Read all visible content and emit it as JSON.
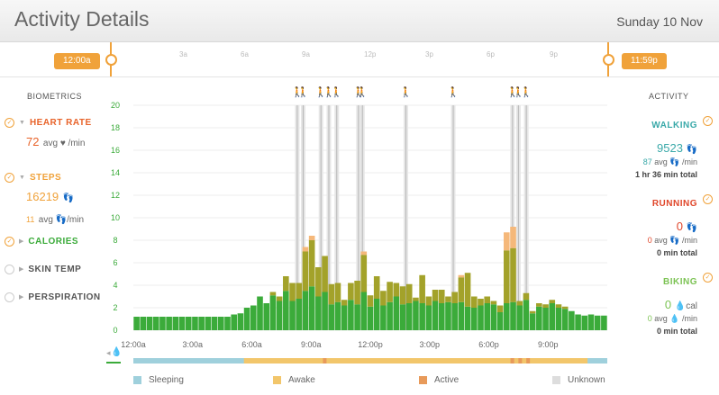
{
  "header": {
    "title": "Activity Details",
    "date": "Sunday 10 Nov"
  },
  "timeline": {
    "start_label": "12:00a",
    "end_label": "11:59p",
    "ticks": [
      "3a",
      "6a",
      "9a",
      "12p",
      "3p",
      "6p",
      "9p"
    ]
  },
  "biometrics": {
    "heading": "BIOMETRICS",
    "heart_rate": {
      "label": "HEART RATE",
      "value": "72",
      "unit": "avg ♥ /min"
    },
    "steps": {
      "label": "STEPS",
      "value": "16219",
      "icon": "footsteps-icon",
      "avg": "11",
      "avg_unit": "avg 👣/min"
    },
    "calories": {
      "label": "CALORIES"
    },
    "skin_temp": {
      "label": "SKIN TEMP"
    },
    "perspiration": {
      "label": "PERSPIRATION"
    }
  },
  "activity": {
    "heading": "ACTIVITY",
    "walking": {
      "label": "WALKING",
      "value": "9523",
      "avg": "87",
      "avg_unit": "avg 👣 /min",
      "total": "1 hr 36 min total"
    },
    "running": {
      "label": "RUNNING",
      "value": "0",
      "avg": "0",
      "avg_unit": "avg 👣 /min",
      "total": "0 min total"
    },
    "biking": {
      "label": "BIKING",
      "value": "0",
      "unit": "cal",
      "avg": "0",
      "avg_unit": "avg 💧 /min",
      "total": "0 min total"
    }
  },
  "legend": [
    "Sleeping",
    "Awake",
    "Active",
    "Unknown"
  ],
  "colors": {
    "accent": "#f0a23a",
    "green": "#3bab3a",
    "olive": "#a3a22a",
    "peach": "#f5b87a",
    "sleeping": "#9fd0dc",
    "awake": "#f2c66b",
    "active": "#e89a5a",
    "unknown": "#dddddd",
    "heart": "#e8632a",
    "steps": "#f0a23a",
    "calories": "#3bab3a",
    "walking": "#3aa9a9",
    "running": "#e0462a",
    "biking": "#7cc354"
  },
  "chart_data": {
    "type": "bar",
    "ylim": [
      0,
      20
    ],
    "yticks": [
      0,
      2,
      4,
      6,
      8,
      10,
      12,
      14,
      16,
      18,
      20
    ],
    "xticks": [
      "12:00a",
      "3:00a",
      "6:00a",
      "9:00a",
      "12:00p",
      "3:00p",
      "6:00p",
      "9:00p"
    ],
    "series": [
      {
        "values": [
          1.2,
          1.2,
          1.2,
          1.2,
          1.2,
          1.2,
          1.2,
          1.2,
          1.2,
          1.2,
          1.2,
          1.2,
          1.2,
          1.2,
          1.2,
          1.4,
          1.5,
          2.0,
          2.2,
          3.0,
          2.4,
          3.1,
          2.6,
          3.5,
          2.6,
          2.8,
          3.5,
          3.9,
          3.0,
          3.4,
          2.3,
          2.5,
          2.2,
          2.7,
          2.3,
          3.4,
          2.1,
          2.8,
          2.2,
          2.5,
          3.0,
          2.3,
          2.4,
          2.6,
          2.4,
          2.2,
          2.6,
          2.4,
          2.5,
          2.4,
          2.5,
          2.1,
          2.0,
          2.2,
          2.4,
          2.3,
          1.6,
          2.4,
          2.5,
          2.2,
          2.7,
          1.5,
          2.1,
          2.0,
          2.4,
          2.0,
          1.9,
          1.7,
          1.4,
          1.3,
          1.4,
          1.3,
          1.3
        ]
      },
      {
        "values": [
          0,
          0,
          0,
          0,
          0,
          0,
          0,
          0,
          0,
          0,
          0,
          0,
          0,
          0,
          0,
          0,
          0,
          0,
          0,
          0,
          0,
          0.3,
          0.4,
          1.3,
          1.6,
          1.4,
          3.5,
          4.1,
          2.6,
          3.2,
          1.8,
          1.7,
          0.5,
          1.5,
          2.1,
          3.3,
          1.0,
          2.0,
          1.3,
          1.8,
          1.2,
          1.6,
          1.7,
          0.3,
          2.5,
          0.8,
          1.0,
          1.2,
          0.5,
          1.0,
          2.2,
          3.0,
          1.0,
          0.6,
          0.6,
          0.3,
          0.6,
          4.7,
          4.8,
          0.4,
          0.6,
          0.2,
          0.3,
          0.3,
          0.3,
          0.3,
          0.2,
          0.0,
          0,
          0,
          0,
          0,
          0
        ]
      },
      {
        "values": [
          0,
          0,
          0,
          0,
          0,
          0,
          0,
          0,
          0,
          0,
          0,
          0,
          0,
          0,
          0,
          0,
          0,
          0,
          0,
          0,
          0,
          0,
          0,
          0,
          0,
          0,
          0.4,
          0.4,
          0,
          0,
          0,
          0,
          0,
          0,
          0,
          0.3,
          0,
          0,
          0,
          0,
          0,
          0,
          0,
          0,
          0,
          0,
          0,
          0,
          0,
          0,
          0.2,
          0,
          0,
          0,
          0,
          0,
          0,
          1.6,
          1.9,
          0,
          0,
          0,
          0,
          0,
          0,
          0,
          0,
          0,
          0,
          0,
          0,
          0,
          0
        ]
      }
    ],
    "markers_hours": [
      8.3,
      8.6,
      9.5,
      9.9,
      10.3,
      11.4,
      11.6,
      13.8,
      16.2,
      19.2,
      19.5,
      19.9
    ]
  }
}
